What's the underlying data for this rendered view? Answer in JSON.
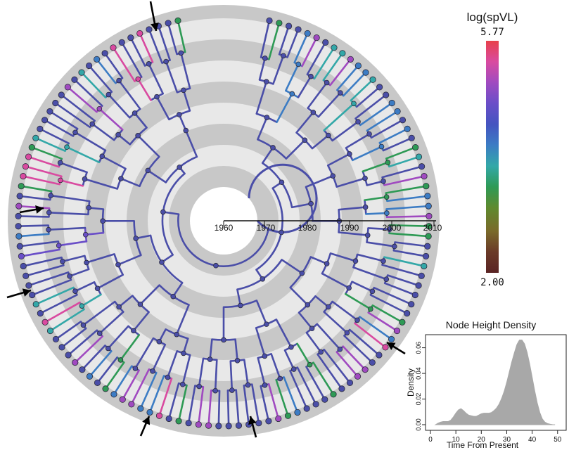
{
  "tree": {
    "n_tips": 120,
    "time_axis": {
      "ticks": [
        "1960",
        "1970",
        "1980",
        "1990",
        "2000",
        "2010"
      ],
      "range": [
        1955,
        2011
      ]
    },
    "ring_band_years": 10,
    "colors": {
      "ring_dark": "#c8c8c8",
      "ring_light": "#e8e8e8",
      "branch_default": "#4a4ea8",
      "node_stroke": "#2b2b3a"
    },
    "arrow_count": 7
  },
  "legend": {
    "title": "log(spVL)",
    "max_label": "5.77",
    "min_label": "2.00",
    "gradient": [
      "#e8414a",
      "#d94aa0",
      "#a04ac0",
      "#6a4ec8",
      "#4454c0",
      "#3c7cc4",
      "#33a8a8",
      "#2e9a55",
      "#5f8a2e",
      "#7a6a2a",
      "#6a3a28",
      "#5a2424"
    ]
  },
  "chart_data": {
    "type": "area",
    "title": "Node Height Density",
    "xlabel": "Time From Present",
    "ylabel": "Density",
    "xlim": [
      0,
      52
    ],
    "ylim": [
      0,
      0.068
    ],
    "xticks": [
      "0",
      "10",
      "20",
      "30",
      "40",
      "50"
    ],
    "yticks": [
      "0.00",
      "0.02",
      "0.04",
      "0.06"
    ],
    "fill": "#a8a8a8",
    "x": [
      2,
      3,
      4,
      5,
      6,
      7,
      8,
      9,
      10,
      11,
      12,
      13,
      14,
      15,
      16,
      17,
      18,
      19,
      20,
      21,
      22,
      23,
      24,
      25,
      26,
      27,
      28,
      29,
      30,
      31,
      32,
      33,
      34,
      35,
      36,
      37,
      38,
      39,
      40,
      41,
      42,
      43,
      44,
      45,
      46,
      47,
      48,
      49
    ],
    "y": [
      0,
      0.0012,
      0.002,
      0.0025,
      0.0025,
      0.0025,
      0.0035,
      0.006,
      0.009,
      0.0115,
      0.0125,
      0.011,
      0.009,
      0.0075,
      0.007,
      0.0065,
      0.0065,
      0.0075,
      0.0085,
      0.009,
      0.009,
      0.009,
      0.0095,
      0.011,
      0.013,
      0.016,
      0.0205,
      0.026,
      0.033,
      0.041,
      0.049,
      0.056,
      0.0625,
      0.066,
      0.066,
      0.063,
      0.0565,
      0.0475,
      0.037,
      0.0265,
      0.017,
      0.0095,
      0.0045,
      0.002,
      0.0009,
      0.0004,
      0.0001,
      0
    ]
  }
}
